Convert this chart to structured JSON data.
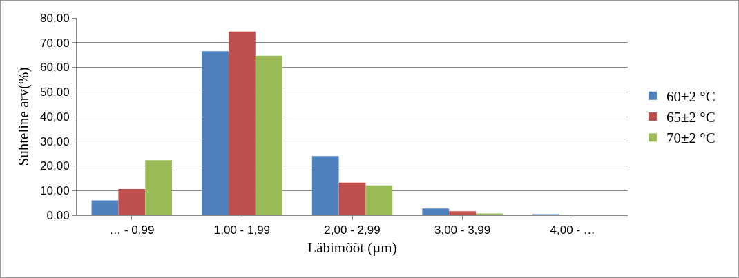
{
  "chart_data": {
    "type": "bar",
    "xlabel": "Läbimõõt (µm)",
    "ylabel": "Suhteline arv(%)",
    "categories": [
      "… - 0,99",
      "1,00 - 1,99",
      "2,00 - 2,99",
      "3,00 - 3,99",
      "4,00 - …"
    ],
    "series": [
      {
        "name": "60±2 °C",
        "color": "#4f81bd",
        "values": [
          6.0,
          66.5,
          24.0,
          2.7,
          0.4
        ]
      },
      {
        "name": "65±2 °C",
        "color": "#c0504d",
        "values": [
          10.6,
          74.5,
          13.2,
          1.6,
          0
        ]
      },
      {
        "name": "70±2 °C",
        "color": "#9bbb59",
        "values": [
          22.3,
          64.7,
          12.1,
          0.7,
          0
        ]
      }
    ],
    "ylim": [
      0,
      80
    ],
    "yticks": [
      {
        "value": 0,
        "label": "0,00"
      },
      {
        "value": 10,
        "label": "10,00"
      },
      {
        "value": 20,
        "label": "20,00"
      },
      {
        "value": 30,
        "label": "30,00"
      },
      {
        "value": 40,
        "label": "40,00"
      },
      {
        "value": 50,
        "label": "50,00"
      },
      {
        "value": 60,
        "label": "60,00"
      },
      {
        "value": 70,
        "label": "70,00"
      },
      {
        "value": 80,
        "label": "80,00"
      }
    ],
    "grid": "y",
    "legend": "right"
  }
}
